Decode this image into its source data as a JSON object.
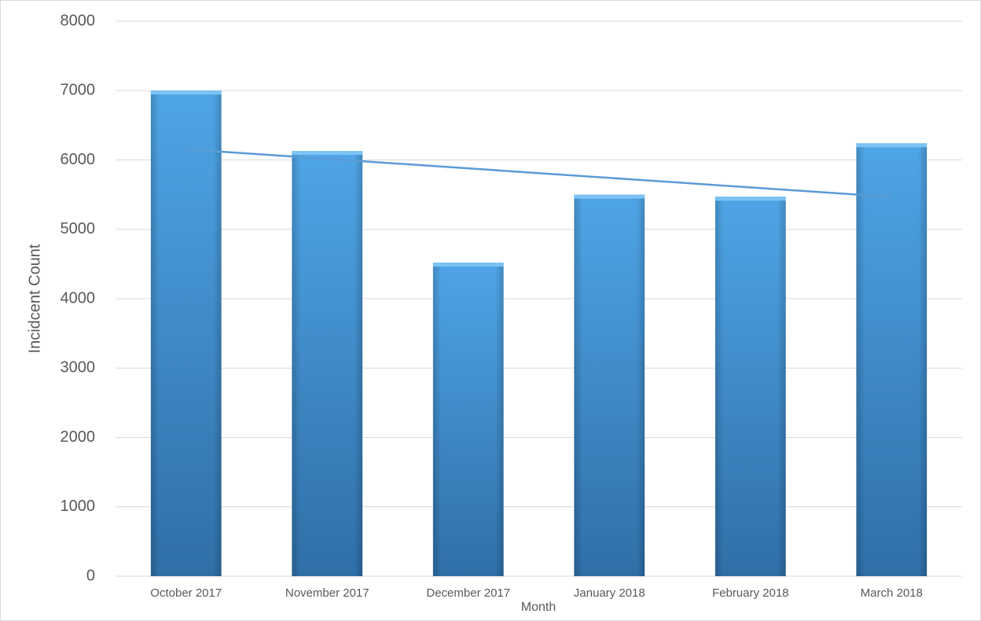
{
  "chart_data": {
    "type": "bar",
    "categories": [
      "October 2017",
      "November 2017",
      "December 2017",
      "January 2018",
      "February  2018",
      "March 2018"
    ],
    "values": [
      7000,
      6130,
      4520,
      5500,
      5470,
      6240
    ],
    "color": "#4a9de0",
    "x_label": "Month",
    "y_label": "Incidcent Count",
    "ylim": [
      0,
      8000
    ],
    "yticks": [
      0,
      1000,
      2000,
      3000,
      4000,
      5000,
      6000,
      7000,
      8000
    ],
    "grid": true,
    "trendline": "linear",
    "trendline_color": "#5b9bd5"
  }
}
